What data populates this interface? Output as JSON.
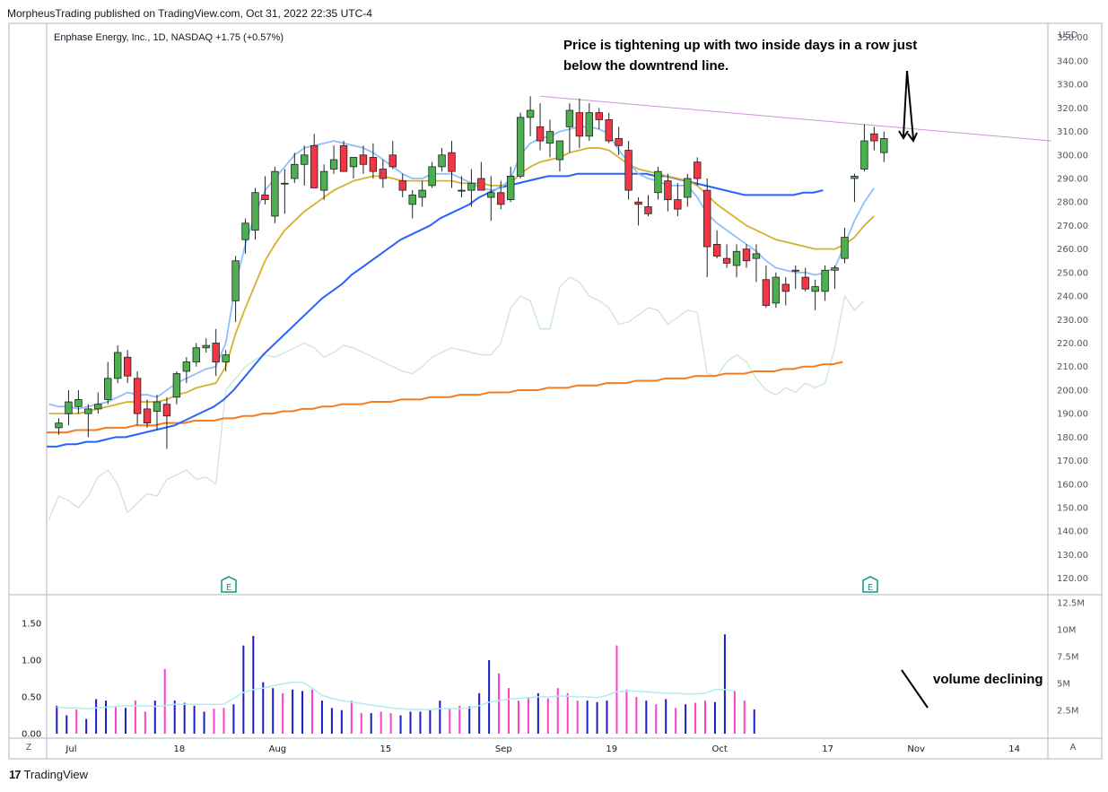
{
  "publisher": "MorpheusTrading published on TradingView.com, Oct 31, 2022 22:35 UTC-4",
  "ticker_line": "Enphase Energy, Inc., 1D, NASDAQ  +1.75 (+0.57%)",
  "annotation_main": "Price is  tightening up with two inside days in a row just below the downtrend line.",
  "annotation_volume": "volume declining",
  "brand": {
    "mark": "17",
    "text": "TradingView"
  },
  "corner_left": "Z",
  "corner_right": "A",
  "earnings_marker": "E",
  "colors": {
    "up": "#4caf50",
    "down": "#f23645",
    "ema_short": "#90bff9",
    "ema_mid": "#d4b22b",
    "sma_50": "#2962ff",
    "sma_200": "#f57c1f",
    "rs_line": "#c8e6c9",
    "trendline": "#ce93d8",
    "vol_up": "#1b1bc8",
    "vol_down": "#ff3ec9",
    "vol_avg": "#b2ebf2"
  },
  "chart_data": {
    "type": "candlestick",
    "currency": "USD",
    "y_axis": {
      "label": "USD",
      "min": 113,
      "max": 356,
      "ticks": [
        "350.00",
        "340.00",
        "330.00",
        "320.00",
        "310.00",
        "300.00",
        "290.00",
        "280.00",
        "270.00",
        "260.00",
        "250.00",
        "240.00",
        "230.00",
        "220.00",
        "210.00",
        "200.00",
        "190.00",
        "180.00",
        "170.00",
        "160.00",
        "150.00",
        "140.00",
        "130.00",
        "120.00"
      ]
    },
    "x_axis": {
      "labels": [
        "Jul",
        "18",
        "Aug",
        "15",
        "Sep",
        "19",
        "Oct",
        "17",
        "Nov",
        "14"
      ],
      "label_index": [
        1,
        12,
        22,
        33,
        45,
        56,
        67,
        78,
        87,
        97
      ]
    },
    "candles": [
      {
        "o": 184,
        "h": 188,
        "l": 181,
        "c": 186
      },
      {
        "o": 190,
        "h": 200,
        "l": 185,
        "c": 195
      },
      {
        "o": 193,
        "h": 200,
        "l": 190,
        "c": 196
      },
      {
        "o": 190,
        "h": 194,
        "l": 180,
        "c": 192
      },
      {
        "o": 192,
        "h": 199,
        "l": 190,
        "c": 194
      },
      {
        "o": 196,
        "h": 212,
        "l": 194,
        "c": 205
      },
      {
        "o": 205,
        "h": 219,
        "l": 203,
        "c": 216
      },
      {
        "o": 214,
        "h": 217,
        "l": 203,
        "c": 206
      },
      {
        "o": 205,
        "h": 208,
        "l": 185,
        "c": 190
      },
      {
        "o": 192,
        "h": 196,
        "l": 184,
        "c": 186
      },
      {
        "o": 191,
        "h": 198,
        "l": 183,
        "c": 195
      },
      {
        "o": 194,
        "h": 197,
        "l": 175,
        "c": 189
      },
      {
        "o": 197,
        "h": 208,
        "l": 194,
        "c": 207
      },
      {
        "o": 208,
        "h": 214,
        "l": 203,
        "c": 212
      },
      {
        "o": 212,
        "h": 220,
        "l": 210,
        "c": 218
      },
      {
        "o": 218,
        "h": 222,
        "l": 216,
        "c": 219
      },
      {
        "o": 220,
        "h": 226,
        "l": 206,
        "c": 212
      },
      {
        "o": 212,
        "h": 217,
        "l": 208,
        "c": 215
      },
      {
        "o": 238,
        "h": 257,
        "l": 229,
        "c": 255
      },
      {
        "o": 264,
        "h": 273,
        "l": 258,
        "c": 271
      },
      {
        "o": 268,
        "h": 286,
        "l": 264,
        "c": 284
      },
      {
        "o": 283,
        "h": 291,
        "l": 279,
        "c": 281
      },
      {
        "o": 274,
        "h": 295,
        "l": 271,
        "c": 293
      },
      {
        "o": 288,
        "h": 294,
        "l": 275,
        "c": 288
      },
      {
        "o": 290,
        "h": 301,
        "l": 288,
        "c": 296
      },
      {
        "o": 296,
        "h": 304,
        "l": 287,
        "c": 300
      },
      {
        "o": 304,
        "h": 309,
        "l": 287,
        "c": 286
      },
      {
        "o": 285,
        "h": 296,
        "l": 281,
        "c": 293
      },
      {
        "o": 294,
        "h": 304,
        "l": 292,
        "c": 298
      },
      {
        "o": 304,
        "h": 306,
        "l": 293,
        "c": 293
      },
      {
        "o": 295,
        "h": 299,
        "l": 290,
        "c": 299
      },
      {
        "o": 300,
        "h": 304,
        "l": 292,
        "c": 296
      },
      {
        "o": 299,
        "h": 305,
        "l": 290,
        "c": 293
      },
      {
        "o": 294,
        "h": 298,
        "l": 286,
        "c": 290
      },
      {
        "o": 300,
        "h": 306,
        "l": 294,
        "c": 295
      },
      {
        "o": 289,
        "h": 292,
        "l": 282,
        "c": 285
      },
      {
        "o": 279,
        "h": 285,
        "l": 273,
        "c": 283
      },
      {
        "o": 282,
        "h": 289,
        "l": 278,
        "c": 285
      },
      {
        "o": 287,
        "h": 297,
        "l": 286,
        "c": 295
      },
      {
        "o": 295,
        "h": 303,
        "l": 293,
        "c": 300
      },
      {
        "o": 301,
        "h": 306,
        "l": 286,
        "c": 293
      },
      {
        "o": 285,
        "h": 291,
        "l": 282,
        "c": 285
      },
      {
        "o": 285,
        "h": 294,
        "l": 278,
        "c": 288
      },
      {
        "o": 290,
        "h": 297,
        "l": 286,
        "c": 285
      },
      {
        "o": 282,
        "h": 291,
        "l": 272,
        "c": 284
      },
      {
        "o": 284,
        "h": 289,
        "l": 277,
        "c": 279
      },
      {
        "o": 281,
        "h": 295,
        "l": 280,
        "c": 291
      },
      {
        "o": 291,
        "h": 318,
        "l": 290,
        "c": 316
      },
      {
        "o": 316,
        "h": 325,
        "l": 308,
        "c": 319
      },
      {
        "o": 312,
        "h": 322,
        "l": 302,
        "c": 306
      },
      {
        "o": 305,
        "h": 315,
        "l": 299,
        "c": 310
      },
      {
        "o": 298,
        "h": 306,
        "l": 293,
        "c": 306
      },
      {
        "o": 312,
        "h": 322,
        "l": 301,
        "c": 319
      },
      {
        "o": 318,
        "h": 324,
        "l": 303,
        "c": 308
      },
      {
        "o": 308,
        "h": 322,
        "l": 306,
        "c": 318
      },
      {
        "o": 318,
        "h": 320,
        "l": 311,
        "c": 315
      },
      {
        "o": 315,
        "h": 318,
        "l": 305,
        "c": 306
      },
      {
        "o": 307,
        "h": 312,
        "l": 300,
        "c": 304
      },
      {
        "o": 302,
        "h": 306,
        "l": 281,
        "c": 285
      },
      {
        "o": 280,
        "h": 282,
        "l": 270,
        "c": 279
      },
      {
        "o": 278,
        "h": 283,
        "l": 274,
        "c": 275
      },
      {
        "o": 284,
        "h": 295,
        "l": 281,
        "c": 293
      },
      {
        "o": 289,
        "h": 292,
        "l": 276,
        "c": 281
      },
      {
        "o": 281,
        "h": 288,
        "l": 274,
        "c": 277
      },
      {
        "o": 282,
        "h": 292,
        "l": 278,
        "c": 290
      },
      {
        "o": 297,
        "h": 299,
        "l": 287,
        "c": 290
      },
      {
        "o": 285,
        "h": 290,
        "l": 248,
        "c": 261
      },
      {
        "o": 262,
        "h": 268,
        "l": 256,
        "c": 257
      },
      {
        "o": 256,
        "h": 262,
        "l": 252,
        "c": 254
      },
      {
        "o": 253,
        "h": 262,
        "l": 248,
        "c": 259
      },
      {
        "o": 260,
        "h": 262,
        "l": 252,
        "c": 255
      },
      {
        "o": 256,
        "h": 262,
        "l": 246,
        "c": 258
      },
      {
        "o": 247,
        "h": 253,
        "l": 235,
        "c": 236
      },
      {
        "o": 237,
        "h": 250,
        "l": 235,
        "c": 248
      },
      {
        "o": 245,
        "h": 248,
        "l": 236,
        "c": 242
      },
      {
        "o": 251,
        "h": 253,
        "l": 243,
        "c": 251
      },
      {
        "o": 248,
        "h": 252,
        "l": 242,
        "c": 243
      },
      {
        "o": 242,
        "h": 247,
        "l": 234,
        "c": 244
      },
      {
        "o": 242,
        "h": 253,
        "l": 238,
        "c": 251
      },
      {
        "o": 251,
        "h": 253,
        "l": 243,
        "c": 252
      },
      {
        "o": 256,
        "h": 269,
        "l": 254,
        "c": 265
      },
      {
        "o": 290,
        "h": 292,
        "l": 280,
        "c": 291
      },
      {
        "o": 294,
        "h": 313,
        "l": 293,
        "c": 306
      },
      {
        "o": 309,
        "h": 312,
        "l": 302,
        "c": 306
      },
      {
        "o": 301,
        "h": 310,
        "l": 297,
        "c": 307
      }
    ],
    "ema_short": [
      194,
      193,
      193,
      192,
      193,
      194,
      195,
      197,
      199,
      198,
      198,
      197,
      200,
      203,
      205,
      207,
      209,
      210,
      220,
      245,
      262,
      275,
      285,
      290,
      295,
      300,
      303,
      304,
      305,
      306,
      305,
      304,
      303,
      301,
      298,
      295,
      292,
      290,
      290,
      292,
      292,
      292,
      290,
      288,
      286,
      285,
      286,
      290,
      300,
      305,
      307,
      308,
      310,
      311,
      312,
      312,
      311,
      309,
      302,
      297,
      292,
      290,
      289,
      287,
      287,
      287,
      282,
      275,
      271,
      268,
      265,
      262,
      259,
      255,
      252,
      251,
      250,
      250,
      249,
      250,
      252,
      262,
      272,
      280,
      286
    ],
    "ema_mid": [
      190,
      190,
      190,
      190,
      191,
      192,
      193,
      194,
      195,
      195,
      195,
      195,
      196,
      198,
      199,
      201,
      202,
      203,
      210,
      224,
      235,
      245,
      255,
      262,
      268,
      272,
      276,
      279,
      282,
      285,
      287,
      289,
      290,
      291,
      291,
      290,
      289,
      289,
      289,
      289,
      289,
      289,
      288,
      288,
      288,
      287,
      287,
      288,
      292,
      295,
      297,
      298,
      299,
      301,
      302,
      303,
      303,
      302,
      299,
      296,
      294,
      293,
      292,
      291,
      290,
      289,
      287,
      283,
      279,
      276,
      273,
      270,
      268,
      266,
      264,
      263,
      262,
      261,
      260,
      260,
      260,
      262,
      265,
      270,
      274
    ],
    "sma_50": [
      176,
      176,
      177,
      177,
      178,
      178,
      179,
      180,
      180,
      181,
      182,
      183,
      184,
      185,
      187,
      189,
      191,
      193,
      196,
      200,
      205,
      210,
      215,
      219,
      223,
      227,
      231,
      235,
      239,
      242,
      245,
      249,
      252,
      255,
      258,
      261,
      264,
      266,
      268,
      270,
      273,
      275,
      277,
      279,
      282,
      284,
      286,
      287,
      288,
      289,
      290,
      291,
      291,
      291,
      292,
      292,
      292,
      292,
      292,
      292,
      292,
      292,
      291,
      291,
      290,
      289,
      288,
      287,
      286,
      285,
      284,
      283,
      283,
      283,
      283,
      283,
      283,
      284,
      284,
      285
    ],
    "sma_200": [
      182,
      182,
      182,
      183,
      183,
      183,
      184,
      184,
      184,
      185,
      185,
      185,
      186,
      186,
      186,
      187,
      187,
      187,
      188,
      188,
      189,
      189,
      190,
      190,
      191,
      191,
      192,
      192,
      193,
      193,
      194,
      194,
      194,
      195,
      195,
      195,
      196,
      196,
      196,
      197,
      197,
      197,
      198,
      198,
      198,
      199,
      199,
      199,
      200,
      200,
      200,
      201,
      201,
      201,
      202,
      202,
      202,
      203,
      203,
      203,
      204,
      204,
      204,
      205,
      205,
      205,
      206,
      206,
      206,
      207,
      207,
      207,
      208,
      208,
      208,
      209,
      209,
      210,
      210,
      211,
      211,
      212
    ],
    "rs_line": [
      145,
      155,
      153,
      150,
      155,
      163,
      166,
      160,
      148,
      152,
      156,
      155,
      162,
      164,
      166,
      162,
      163,
      160,
      200,
      205,
      210,
      213,
      215,
      214,
      216,
      218,
      220,
      218,
      214,
      216,
      219,
      218,
      216,
      214,
      212,
      210,
      208,
      207,
      210,
      214,
      216,
      218,
      217,
      216,
      215,
      215,
      220,
      235,
      240,
      238,
      226,
      226,
      244,
      248,
      246,
      240,
      238,
      235,
      228,
      229,
      232,
      235,
      234,
      228,
      231,
      234,
      233,
      207,
      206,
      212,
      215,
      212,
      205,
      200,
      198,
      201,
      199,
      203,
      201,
      203,
      218,
      240,
      234,
      238
    ],
    "trendline": {
      "from": {
        "index": 49,
        "value": 325
      },
      "to": {
        "index": 101,
        "value": 306
      }
    },
    "volume": {
      "axis_labels": [
        "1.50",
        "1.00",
        "0.50",
        "0.00"
      ],
      "axis_labels_right": [
        "12.5M",
        "10M",
        "7.5M",
        "5M",
        "2.5M"
      ],
      "bars": [
        {
          "v": 0.38,
          "up": true
        },
        {
          "v": 0.25,
          "up": true
        },
        {
          "v": 0.33,
          "up": false
        },
        {
          "v": 0.2,
          "up": true
        },
        {
          "v": 0.47,
          "up": true
        },
        {
          "v": 0.45,
          "up": true
        },
        {
          "v": 0.36,
          "up": false
        },
        {
          "v": 0.35,
          "up": true
        },
        {
          "v": 0.45,
          "up": false
        },
        {
          "v": 0.3,
          "up": false
        },
        {
          "v": 0.45,
          "up": true
        },
        {
          "v": 0.88,
          "up": false
        },
        {
          "v": 0.45,
          "up": true
        },
        {
          "v": 0.42,
          "up": true
        },
        {
          "v": 0.38,
          "up": true
        },
        {
          "v": 0.3,
          "up": true
        },
        {
          "v": 0.34,
          "up": false
        },
        {
          "v": 0.35,
          "up": false
        },
        {
          "v": 0.4,
          "up": true
        },
        {
          "v": 1.2,
          "up": true
        },
        {
          "v": 1.33,
          "up": true
        },
        {
          "v": 0.7,
          "up": true
        },
        {
          "v": 0.62,
          "up": true
        },
        {
          "v": 0.55,
          "up": false
        },
        {
          "v": 0.6,
          "up": true
        },
        {
          "v": 0.58,
          "up": true
        },
        {
          "v": 0.6,
          "up": false
        },
        {
          "v": 0.45,
          "up": true
        },
        {
          "v": 0.35,
          "up": true
        },
        {
          "v": 0.32,
          "up": true
        },
        {
          "v": 0.45,
          "up": false
        },
        {
          "v": 0.28,
          "up": false
        },
        {
          "v": 0.28,
          "up": true
        },
        {
          "v": 0.3,
          "up": false
        },
        {
          "v": 0.28,
          "up": false
        },
        {
          "v": 0.25,
          "up": true
        },
        {
          "v": 0.3,
          "up": true
        },
        {
          "v": 0.3,
          "up": true
        },
        {
          "v": 0.32,
          "up": true
        },
        {
          "v": 0.45,
          "up": true
        },
        {
          "v": 0.35,
          "up": false
        },
        {
          "v": 0.38,
          "up": false
        },
        {
          "v": 0.37,
          "up": true
        },
        {
          "v": 0.55,
          "up": true
        },
        {
          "v": 1.0,
          "up": true
        },
        {
          "v": 0.82,
          "up": false
        },
        {
          "v": 0.62,
          "up": false
        },
        {
          "v": 0.45,
          "up": false
        },
        {
          "v": 0.5,
          "up": false
        },
        {
          "v": 0.55,
          "up": true
        },
        {
          "v": 0.48,
          "up": false
        },
        {
          "v": 0.62,
          "up": false
        },
        {
          "v": 0.55,
          "up": false
        },
        {
          "v": 0.45,
          "up": false
        },
        {
          "v": 0.45,
          "up": true
        },
        {
          "v": 0.43,
          "up": true
        },
        {
          "v": 0.45,
          "up": true
        },
        {
          "v": 1.2,
          "up": false
        },
        {
          "v": 0.6,
          "up": false
        },
        {
          "v": 0.5,
          "up": false
        },
        {
          "v": 0.45,
          "up": true
        },
        {
          "v": 0.4,
          "up": false
        },
        {
          "v": 0.47,
          "up": true
        },
        {
          "v": 0.35,
          "up": false
        },
        {
          "v": 0.4,
          "up": true
        },
        {
          "v": 0.42,
          "up": false
        },
        {
          "v": 0.45,
          "up": false
        },
        {
          "v": 0.43,
          "up": true
        },
        {
          "v": 1.35,
          "up": true
        },
        {
          "v": 0.58,
          "up": false
        },
        {
          "v": 0.45,
          "up": false
        },
        {
          "v": 0.33,
          "up": true
        }
      ],
      "avg": [
        0.36,
        0.35,
        0.35,
        0.34,
        0.35,
        0.36,
        0.37,
        0.38,
        0.38,
        0.38,
        0.37,
        0.38,
        0.4,
        0.4,
        0.4,
        0.4,
        0.4,
        0.4,
        0.48,
        0.56,
        0.6,
        0.62,
        0.65,
        0.68,
        0.7,
        0.7,
        0.62,
        0.52,
        0.48,
        0.45,
        0.43,
        0.41,
        0.39,
        0.37,
        0.35,
        0.34,
        0.33,
        0.33,
        0.33,
        0.34,
        0.34,
        0.34,
        0.35,
        0.38,
        0.43,
        0.45,
        0.47,
        0.48,
        0.49,
        0.5,
        0.5,
        0.51,
        0.51,
        0.5,
        0.5,
        0.49,
        0.52,
        0.57,
        0.58,
        0.58,
        0.57,
        0.56,
        0.55,
        0.55,
        0.54,
        0.54,
        0.55,
        0.6,
        0.6,
        0.58
      ]
    }
  }
}
